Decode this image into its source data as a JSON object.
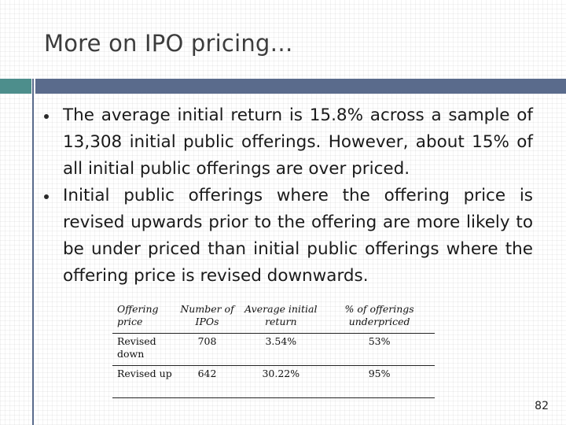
{
  "slide": {
    "title": "More on IPO pricing…",
    "bullets": [
      "The average initial return is 15.8% across a sample of 13,308 initial public offerings. However, about 15% of all initial public offerings are over priced.",
      "Initial public offerings where the offering price is revised upwards prior to the offering are more likely to be under priced than initial public offerings where the offering price is revised downwards."
    ],
    "table": {
      "headers": [
        "Offering price",
        "Number of IPOs",
        "Average initial return",
        "% of offerings underpriced"
      ],
      "rows": [
        [
          "Revised down",
          "708",
          "3.54%",
          "53%"
        ],
        [
          "Revised up",
          "642",
          "30.22%",
          "95%"
        ]
      ]
    },
    "page_number": "82"
  },
  "colors": {
    "title_text": "#3c3c3c",
    "rule_teal": "#4d8e8c",
    "rule_slate": "#5a6b8c",
    "body_text": "#1a1a1a"
  }
}
